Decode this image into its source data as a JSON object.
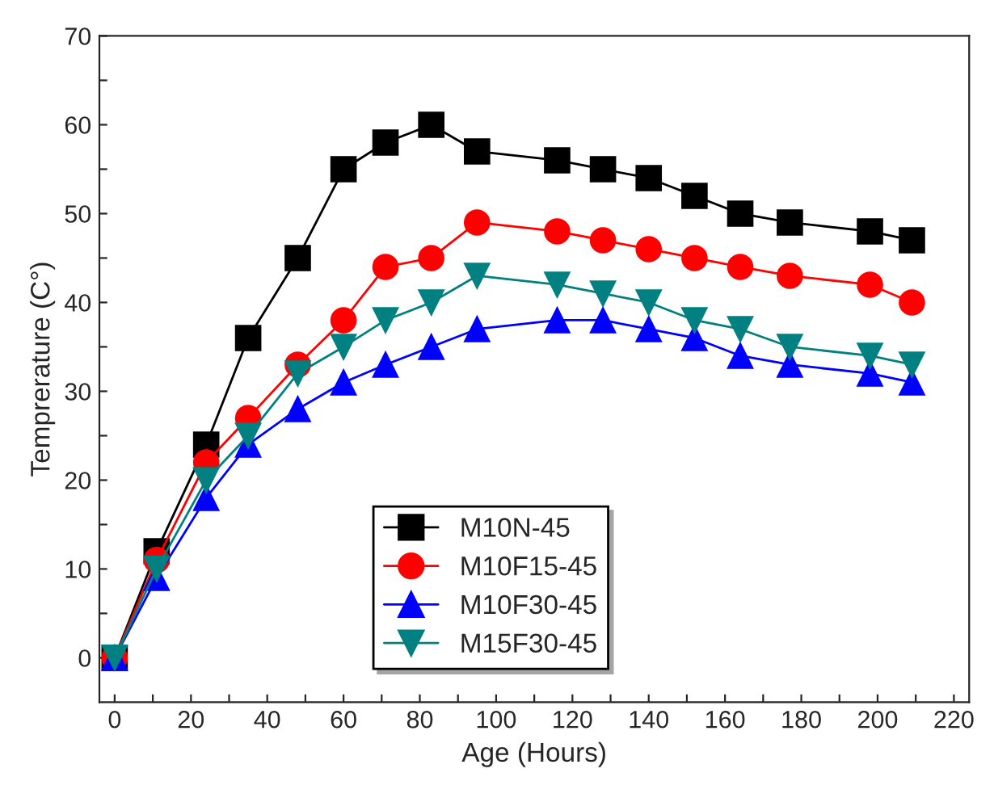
{
  "chart_data": {
    "type": "line",
    "xlabel": "Age (Hours)",
    "ylabel": "Temprerature (C°)",
    "x": [
      0,
      11,
      24,
      35,
      48,
      60,
      71,
      83,
      95,
      116,
      128,
      140,
      152,
      164,
      177,
      198,
      209
    ],
    "series": [
      {
        "name": "M10N-45",
        "color": "#000000",
        "marker": "square",
        "values": [
          0,
          12,
          24,
          36,
          45,
          55,
          58,
          60,
          57,
          56,
          55,
          54,
          52,
          50,
          49,
          48,
          47
        ]
      },
      {
        "name": "M10F15-45",
        "color": "#ff0000",
        "marker": "circle",
        "values": [
          0,
          11,
          22,
          27,
          33,
          38,
          44,
          45,
          49,
          48,
          47,
          46,
          45,
          44,
          43,
          42,
          40
        ]
      },
      {
        "name": "M10F30-45",
        "color": "#0000ff",
        "marker": "triangle",
        "values": [
          0,
          9,
          18,
          24,
          28,
          31,
          33,
          35,
          37,
          38,
          38,
          37,
          36,
          34,
          33,
          32,
          31
        ]
      },
      {
        "name": "M15F30-45",
        "color": "#008080",
        "marker": "triangle_down",
        "values": [
          0,
          10,
          20,
          25,
          32,
          35,
          38,
          40,
          43,
          42,
          41,
          40,
          38,
          37,
          35,
          34,
          33
        ]
      }
    ],
    "xlim": [
      -4,
      224
    ],
    "ylim": [
      -5,
      70
    ],
    "xticks": [
      0,
      {
        "value": 10,
        "label": null
      },
      20,
      {
        "value": 30,
        "label": null
      },
      40,
      {
        "value": 50,
        "label": null
      },
      60,
      {
        "value": 70,
        "label": null
      },
      80,
      {
        "value": 90,
        "label": null
      },
      100,
      {
        "value": 110,
        "label": null
      },
      120,
      {
        "value": 130,
        "label": null
      },
      140,
      {
        "value": 150,
        "label": null
      },
      160,
      {
        "value": 170,
        "label": null
      },
      180,
      {
        "value": 190,
        "label": null
      },
      200,
      {
        "value": 210,
        "label": null
      },
      220
    ],
    "yticks": [
      0,
      {
        "value": 5,
        "label": null
      },
      10,
      {
        "value": 15,
        "label": null
      },
      20,
      {
        "value": 25,
        "label": null
      },
      30,
      {
        "value": 35,
        "label": null
      },
      40,
      {
        "value": 45,
        "label": null
      },
      50,
      {
        "value": 55,
        "label": null
      },
      60,
      {
        "value": 65,
        "label": null
      },
      70
    ],
    "grid": false,
    "legend": "bottom"
  }
}
